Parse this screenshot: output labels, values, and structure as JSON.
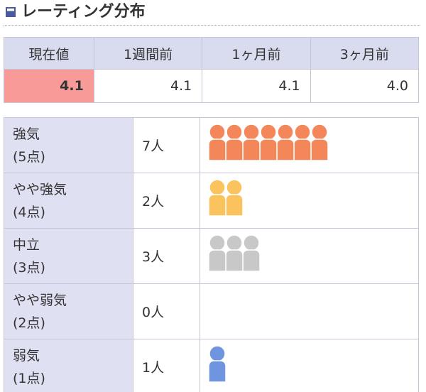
{
  "header": {
    "title": "レーティング分布"
  },
  "summary": {
    "columns": [
      "現在値",
      "1週間前",
      "1ヶ月前",
      "3ヶ月前"
    ],
    "values": [
      "4.1",
      "4.1",
      "4.1",
      "4.0"
    ]
  },
  "distribution": {
    "rows": [
      {
        "label": "強気",
        "points": "(5点)",
        "count": 7,
        "count_label": "7人",
        "color": "#f4875a"
      },
      {
        "label": "やや強気",
        "points": "(4点)",
        "count": 2,
        "count_label": "2人",
        "color": "#fbc35e"
      },
      {
        "label": "中立",
        "points": "(3点)",
        "count": 3,
        "count_label": "3人",
        "color": "#c8c8c8"
      },
      {
        "label": "やや弱気",
        "points": "(2点)",
        "count": 0,
        "count_label": "0人",
        "color": "#999999"
      },
      {
        "label": "弱気",
        "points": "(1点)",
        "count": 1,
        "count_label": "1人",
        "color": "#6f95e0"
      }
    ]
  }
}
